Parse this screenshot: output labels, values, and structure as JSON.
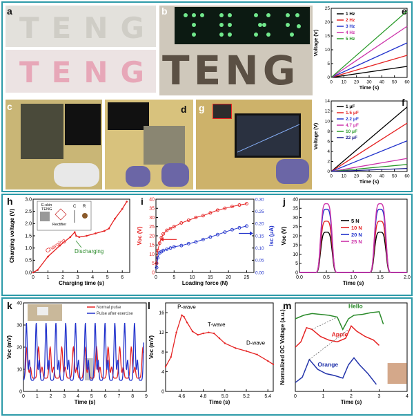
{
  "figure": {
    "accent_color": "#2c9aa8",
    "panel_labels": {
      "a": "a",
      "b": "b",
      "c": "c",
      "d": "d",
      "e": "e",
      "f": "f",
      "g": "g",
      "h": "h",
      "i": "i",
      "j": "j",
      "k": "k",
      "l": "l",
      "m": "m"
    }
  },
  "photos": {
    "teng_word": "TENG",
    "teng_word_b": "TENG"
  },
  "chart_data": [
    {
      "id": "e",
      "type": "line",
      "xlabel": "Time (s)",
      "ylabel": "Voltage (V)",
      "xlim": [
        0,
        60
      ],
      "ylim": [
        0,
        25
      ],
      "xticks": [
        "0",
        "10",
        "20",
        "30",
        "40",
        "50",
        "60"
      ],
      "yticks": [
        "0",
        "5",
        "10",
        "15",
        "20",
        "25"
      ],
      "series": [
        {
          "name": "1 Hz",
          "color": "#000000",
          "x": [
            0,
            60
          ],
          "y": [
            0,
            4
          ]
        },
        {
          "name": "2 Hz",
          "color": "#e52222",
          "x": [
            0,
            60
          ],
          "y": [
            0,
            8
          ]
        },
        {
          "name": "3 Hz",
          "color": "#2233cc",
          "x": [
            0,
            60
          ],
          "y": [
            0,
            12.5
          ]
        },
        {
          "name": "4 Hz",
          "color": "#cc33aa",
          "x": [
            0,
            60
          ],
          "y": [
            0,
            18.5
          ]
        },
        {
          "name": "5 Hz",
          "color": "#2a9a2a",
          "x": [
            0,
            60
          ],
          "y": [
            0,
            24
          ]
        }
      ]
    },
    {
      "id": "f",
      "type": "line",
      "xlabel": "Time (s)",
      "ylabel": "Voltage (V)",
      "xlim": [
        0,
        60
      ],
      "ylim": [
        0,
        14
      ],
      "xticks": [
        "0",
        "10",
        "20",
        "30",
        "40",
        "50",
        "60"
      ],
      "yticks": [
        "0",
        "2",
        "4",
        "6",
        "8",
        "10",
        "12",
        "14"
      ],
      "series": [
        {
          "name": "1 μF",
          "color": "#000000",
          "x": [
            0,
            60
          ],
          "y": [
            0,
            12.8
          ]
        },
        {
          "name": "1.5 μF",
          "color": "#e52222",
          "x": [
            0,
            60
          ],
          "y": [
            0,
            9.6
          ]
        },
        {
          "name": "2.2 μF",
          "color": "#2233cc",
          "x": [
            0,
            60
          ],
          "y": [
            0,
            6.1
          ]
        },
        {
          "name": "4.7 μF",
          "color": "#cc33aa",
          "x": [
            0,
            60
          ],
          "y": [
            0,
            2.6
          ]
        },
        {
          "name": "10 μF",
          "color": "#2a9a2a",
          "x": [
            0,
            60
          ],
          "y": [
            0,
            1.4
          ]
        },
        {
          "name": "22 μF",
          "color": "#1a1a8a",
          "x": [
            0,
            60
          ],
          "y": [
            0,
            0.6
          ]
        }
      ]
    },
    {
      "id": "h",
      "type": "line",
      "xlabel": "Charging time (s)",
      "ylabel": "Charging voltage (V)",
      "xlim": [
        0,
        6.5
      ],
      "ylim": [
        0,
        3
      ],
      "xticks": [
        "0",
        "1",
        "2",
        "3",
        "4",
        "5",
        "6"
      ],
      "yticks": [
        "0.0",
        "0.5",
        "1.0",
        "1.5",
        "2.0",
        "2.5",
        "3.0"
      ],
      "annotations": [
        "Charging",
        "Discharging"
      ],
      "circuit_labels": [
        "E-skin TENG",
        "Rectifier",
        "C",
        "R"
      ],
      "series": [
        {
          "name": "charging curve",
          "color": "#e52222",
          "x": [
            0,
            0.3,
            1.0,
            1.8,
            2.5,
            2.8,
            2.9,
            3.1,
            3.6,
            4.2,
            4.8,
            5.1,
            5.5,
            6.0,
            6.3
          ],
          "y": [
            0,
            0.1,
            0.65,
            1.1,
            1.45,
            1.65,
            1.5,
            1.45,
            1.5,
            1.6,
            1.7,
            1.8,
            2.2,
            2.6,
            2.9
          ]
        }
      ]
    },
    {
      "id": "i",
      "type": "scatter",
      "xlabel": "Loading force (N)",
      "ylabel": "Voc (V)",
      "y2label": "Isc (μA)",
      "xlim": [
        0,
        27
      ],
      "ylim": [
        0,
        40
      ],
      "y2lim": [
        0,
        0.3
      ],
      "xticks": [
        "0",
        "5",
        "10",
        "15",
        "20",
        "25"
      ],
      "yticks": [
        "0",
        "5",
        "10",
        "15",
        "20",
        "25",
        "30",
        "35",
        "40"
      ],
      "y2ticks": [
        "0.00",
        "0.05",
        "0.10",
        "0.15",
        "0.20",
        "0.25",
        "0.30"
      ],
      "series": [
        {
          "name": "Voc",
          "color": "#e52222",
          "axis": "left",
          "x": [
            0.2,
            0.5,
            1,
            1.5,
            2,
            3,
            4,
            5,
            7,
            9,
            11,
            13,
            15,
            17,
            19,
            21,
            23,
            25
          ],
          "y": [
            5,
            12,
            16,
            19,
            21,
            23,
            24,
            25,
            27,
            28.5,
            30,
            31,
            32.5,
            34,
            35,
            36,
            36.8,
            37.5
          ]
        },
        {
          "name": "Isc",
          "color": "#2233cc",
          "axis": "right",
          "x": [
            0.2,
            0.5,
            1,
            1.5,
            2,
            3,
            4,
            5,
            7,
            9,
            11,
            13,
            15,
            17,
            19,
            21,
            23,
            25
          ],
          "y": [
            0.02,
            0.06,
            0.08,
            0.085,
            0.09,
            0.095,
            0.1,
            0.105,
            0.11,
            0.118,
            0.125,
            0.135,
            0.145,
            0.155,
            0.165,
            0.175,
            0.183,
            0.19
          ]
        }
      ]
    },
    {
      "id": "j",
      "type": "line",
      "xlabel": "Time (s)",
      "ylabel": "Voc (V)",
      "xlim": [
        0,
        2
      ],
      "ylim": [
        0,
        40
      ],
      "xticks": [
        "0.0",
        "0.5",
        "1.0",
        "1.5",
        "2.0"
      ],
      "yticks": [
        "0",
        "5",
        "10",
        "15",
        "20",
        "25",
        "30",
        "35",
        "40"
      ],
      "peaks_x": [
        0.5,
        1.5
      ],
      "peak_width": 0.12,
      "series": [
        {
          "name": "5 N",
          "color": "#000000",
          "peak": 22
        },
        {
          "name": "10 N",
          "color": "#e52222",
          "peak": 28
        },
        {
          "name": "20 N",
          "color": "#2233cc",
          "peak": 34.5
        },
        {
          "name": "25 N",
          "color": "#cc33aa",
          "peak": 37.5
        }
      ]
    },
    {
      "id": "k",
      "type": "line",
      "xlabel": "Time (s)",
      "ylabel": "Voc (mV)",
      "xlim": [
        0,
        9
      ],
      "ylim": [
        0,
        40
      ],
      "xticks": [
        "0",
        "1",
        "2",
        "3",
        "4",
        "5",
        "6",
        "7",
        "8",
        "9"
      ],
      "yticks": [
        "0",
        "10",
        "20",
        "30",
        "40"
      ],
      "series": [
        {
          "name": "Normal pulse",
          "color": "#e52222",
          "period": 0.85,
          "base": 6,
          "amp": 14
        },
        {
          "name": "Pulse after exercise",
          "color": "#2233cc",
          "period": 0.72,
          "base": 5,
          "amp": 26
        }
      ]
    },
    {
      "id": "l",
      "type": "line",
      "xlabel": "Time (s)",
      "ylabel": "Voc (mV)",
      "xlim": [
        4.45,
        5.45
      ],
      "ylim": [
        0,
        18
      ],
      "xticks": [
        "4.6",
        "4.8",
        "5.0",
        "5.2",
        "5.4"
      ],
      "yticks": [
        "0",
        "4",
        "8",
        "12",
        "16"
      ],
      "annotations": [
        "P-wave",
        "T-wave",
        "D-wave"
      ],
      "series": [
        {
          "name": "pulse",
          "color": "#e52222",
          "x": [
            4.45,
            4.5,
            4.55,
            4.6,
            4.62,
            4.65,
            4.7,
            4.75,
            4.8,
            4.85,
            4.9,
            4.95,
            5.0,
            5.1,
            5.2,
            5.3,
            5.4,
            5.45
          ],
          "y": [
            5,
            7,
            12,
            15.5,
            15.2,
            14,
            12.2,
            11.5,
            11.8,
            12.0,
            11.8,
            10.8,
            9.8,
            8.8,
            8.2,
            7.5,
            6.2,
            5.5
          ]
        }
      ]
    },
    {
      "id": "m",
      "type": "line",
      "xlabel": "Time (s)",
      "ylabel": "Normalized OC Voltage (a.u.)",
      "xlim": [
        0,
        4
      ],
      "ylim": [
        0,
        1
      ],
      "xticks": [
        "0",
        "1",
        "2",
        "3",
        "4"
      ],
      "series": [
        {
          "name": "Hello",
          "color": "#2a8a2a",
          "x": [
            0,
            0.3,
            0.6,
            0.9,
            1.2,
            1.5,
            1.7,
            1.9,
            2.1,
            2.4,
            2.7,
            3.0,
            3.15
          ],
          "y": [
            0.82,
            0.86,
            0.88,
            0.87,
            0.86,
            0.84,
            0.7,
            0.82,
            0.86,
            0.87,
            0.89,
            0.9,
            0.76
          ]
        },
        {
          "name": "Apple",
          "color": "#e52222",
          "x": [
            0,
            0.2,
            0.4,
            0.6,
            0.9,
            1.2,
            1.5,
            1.8,
            2.0,
            2.2,
            2.5,
            2.8,
            3.0
          ],
          "y": [
            0.5,
            0.56,
            0.72,
            0.7,
            0.62,
            0.58,
            0.56,
            0.6,
            0.74,
            0.68,
            0.62,
            0.58,
            0.52
          ]
        },
        {
          "name": "Orange",
          "color": "#2233aa",
          "x": [
            0,
            0.25,
            0.5,
            0.8,
            1.1,
            1.4,
            1.7,
            1.9,
            2.1,
            2.3,
            2.6,
            2.9
          ],
          "y": [
            0.1,
            0.16,
            0.36,
            0.25,
            0.2,
            0.18,
            0.15,
            0.3,
            0.38,
            0.3,
            0.2,
            0.08
          ]
        }
      ]
    }
  ]
}
